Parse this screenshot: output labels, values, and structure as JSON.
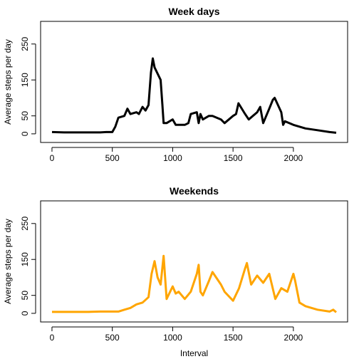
{
  "chart_data": [
    {
      "type": "line",
      "title": "Week days",
      "ylabel": "Average steps per day",
      "xlim": [
        -94.2,
        2449.2
      ],
      "ylim": [
        -24,
        313
      ],
      "xticks": [
        0,
        500,
        1000,
        1500,
        2000
      ],
      "yticks": [
        0,
        50,
        150,
        250
      ],
      "series": [
        {
          "name": "Week days",
          "color": "#000000",
          "x": [
            0,
            100,
            200,
            300,
            400,
            450,
            500,
            525,
            550,
            600,
            625,
            650,
            700,
            720,
            750,
            775,
            800,
            820,
            835,
            850,
            900,
            915,
            925,
            950,
            1000,
            1025,
            1100,
            1130,
            1150,
            1200,
            1215,
            1230,
            1250,
            1300,
            1330,
            1400,
            1430,
            1500,
            1525,
            1545,
            1600,
            1630,
            1700,
            1725,
            1750,
            1800,
            1830,
            1845,
            1900,
            1915,
            1930,
            2000,
            2100,
            2200,
            2300,
            2355
          ],
          "values": [
            5,
            4,
            4,
            4,
            4,
            5,
            5,
            20,
            45,
            50,
            70,
            55,
            60,
            55,
            75,
            65,
            80,
            170,
            210,
            185,
            150,
            80,
            30,
            30,
            40,
            25,
            25,
            30,
            55,
            60,
            30,
            55,
            40,
            50,
            50,
            40,
            30,
            50,
            55,
            85,
            55,
            40,
            60,
            75,
            30,
            70,
            95,
            100,
            60,
            25,
            35,
            25,
            15,
            10,
            5,
            3
          ]
        }
      ]
    },
    {
      "type": "line",
      "title": "Weekends",
      "xlabel": "Interval",
      "ylabel": "Average steps per day",
      "xlim": [
        -94.2,
        2449.2
      ],
      "ylim": [
        -24,
        313
      ],
      "xticks": [
        0,
        500,
        1000,
        1500,
        2000
      ],
      "yticks": [
        0,
        50,
        150,
        250
      ],
      "series": [
        {
          "name": "Weekends",
          "color": "#ffa500",
          "x": [
            0,
            100,
            200,
            300,
            400,
            500,
            550,
            600,
            650,
            700,
            750,
            800,
            825,
            850,
            875,
            900,
            925,
            950,
            1000,
            1025,
            1050,
            1100,
            1150,
            1200,
            1215,
            1230,
            1250,
            1300,
            1330,
            1400,
            1430,
            1500,
            1550,
            1600,
            1615,
            1650,
            1700,
            1750,
            1800,
            1850,
            1900,
            1950,
            2000,
            2015,
            2050,
            2100,
            2200,
            2300,
            2330,
            2355
          ],
          "values": [
            4,
            4,
            4,
            4,
            5,
            5,
            5,
            10,
            15,
            25,
            30,
            45,
            110,
            145,
            100,
            80,
            160,
            40,
            75,
            55,
            60,
            40,
            60,
            110,
            135,
            60,
            50,
            90,
            115,
            80,
            60,
            35,
            70,
            125,
            140,
            80,
            105,
            85,
            110,
            40,
            70,
            60,
            110,
            90,
            30,
            20,
            10,
            5,
            10,
            3
          ]
        }
      ]
    }
  ]
}
